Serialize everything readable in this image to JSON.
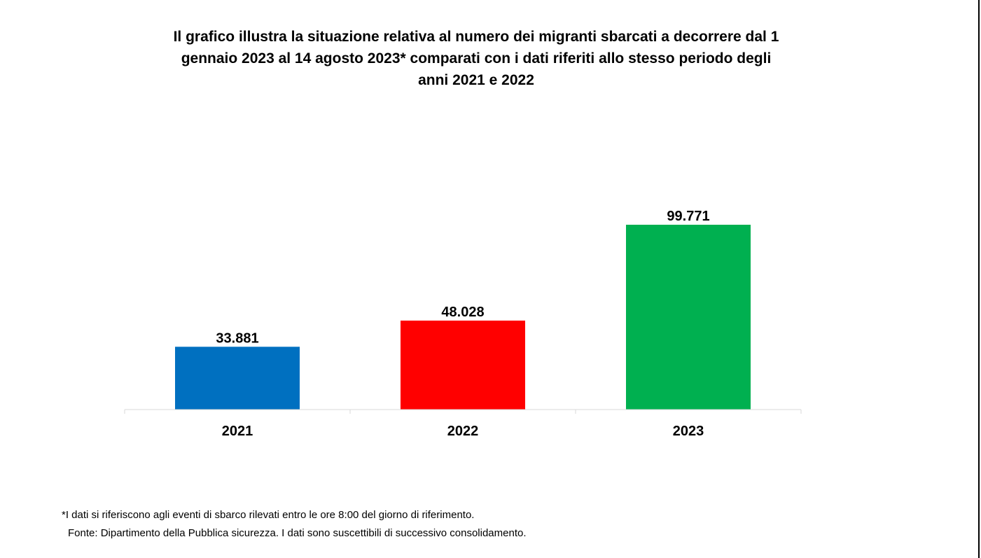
{
  "chart_data": {
    "type": "bar",
    "title_lines": [
      "Il grafico illustra la situazione relativa al numero dei migranti sbarcati a decorrere dal 1",
      "gennaio 2023 al 14 agosto 2023* comparati con i dati riferiti allo stesso periodo degli",
      "anni 2021 e 2022"
    ],
    "categories": [
      "2021",
      "2022",
      "2023"
    ],
    "values": [
      33881,
      48028,
      99771
    ],
    "value_labels": [
      "33.881",
      "48.028",
      "99.771"
    ],
    "colors": [
      "#0070C0",
      "#FF0000",
      "#00B050"
    ],
    "xlabel": "",
    "ylabel": "",
    "ylim": [
      0,
      100000
    ],
    "grid": false,
    "legend": "none"
  },
  "footnote": "*I dati si riferiscono agli eventi di sbarco rilevati entro le ore 8:00 del giorno di riferimento.",
  "source": "Fonte: Dipartimento della Pubblica sicurezza. I dati sono suscettibili di successivo consolidamento."
}
